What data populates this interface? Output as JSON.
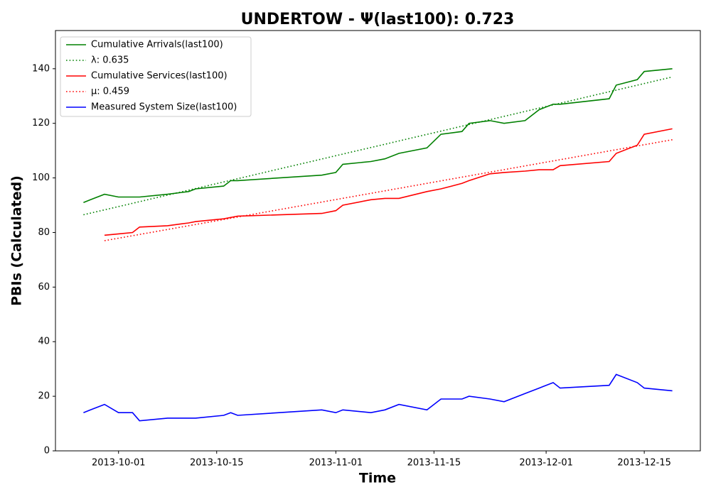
{
  "chart_data": {
    "type": "line",
    "title": "UNDERTOW -  Ψ(last100): 0.723",
    "xlabel": "Time",
    "ylabel": "PBIs (Calculated)",
    "x": [
      "2013-09-26",
      "2013-09-27",
      "2013-09-29",
      "2013-10-01",
      "2013-10-03",
      "2013-10-04",
      "2013-10-08",
      "2013-10-11",
      "2013-10-12",
      "2013-10-16",
      "2013-10-17",
      "2013-10-18",
      "2013-10-30",
      "2013-11-01",
      "2013-11-02",
      "2013-11-06",
      "2013-11-08",
      "2013-11-10",
      "2013-11-14",
      "2013-11-16",
      "2013-11-19",
      "2013-11-20",
      "2013-11-23",
      "2013-11-25",
      "2013-11-28",
      "2013-11-30",
      "2013-12-02",
      "2013-12-03",
      "2013-12-10",
      "2013-12-11",
      "2013-12-14",
      "2013-12-15",
      "2013-12-19"
    ],
    "series": [
      {
        "name": "Cumulative Arrivals(last100)",
        "color": "#008000",
        "linestyle": "solid",
        "values": [
          91,
          92,
          94,
          93,
          93,
          93,
          94,
          95,
          96,
          97,
          99,
          99,
          101,
          102,
          105,
          106,
          107,
          109,
          111,
          116,
          117,
          120,
          121,
          120,
          121,
          125,
          127,
          127,
          129,
          134,
          136,
          139,
          140
        ]
      },
      {
        "name": "λ: 0.635",
        "color": "#008000",
        "linestyle": "dotted",
        "x": [
          "2013-09-26",
          "2013-12-19"
        ],
        "values": [
          86.5,
          137
        ]
      },
      {
        "name": "Cumulative Services(last100)",
        "color": "#ff0000",
        "linestyle": "solid",
        "values": [
          null,
          null,
          79,
          79.5,
          80,
          82,
          82.5,
          83.5,
          84,
          85,
          85.5,
          86,
          87,
          88,
          90,
          92,
          92.5,
          92.5,
          95,
          96,
          98,
          99,
          101.5,
          102,
          102.5,
          103,
          103,
          104.5,
          106,
          109,
          112,
          116,
          118
        ]
      },
      {
        "name": "μ: 0.459",
        "color": "#ff0000",
        "linestyle": "dotted",
        "x": [
          "2013-09-29",
          "2013-12-19"
        ],
        "values": [
          77,
          114
        ]
      },
      {
        "name": "Measured System Size(last100)",
        "color": "#0000ff",
        "linestyle": "solid",
        "values": [
          14,
          15,
          17,
          14,
          14,
          11,
          12,
          12,
          12,
          13,
          14,
          13,
          15,
          14,
          15,
          14,
          15,
          17,
          15,
          19,
          19,
          20,
          19,
          18,
          21,
          23,
          25,
          23,
          24,
          28,
          25,
          23,
          22
        ]
      }
    ],
    "xlim": [
      "2013-09-22",
      "2013-12-23"
    ],
    "xticks": [
      "2013-10-01",
      "2013-10-15",
      "2013-11-01",
      "2013-11-15",
      "2013-12-01",
      "2013-12-15"
    ],
    "ylim": [
      0,
      154
    ],
    "yticks": [
      0,
      20,
      40,
      60,
      80,
      100,
      120,
      140
    ],
    "legend": "upper left"
  }
}
